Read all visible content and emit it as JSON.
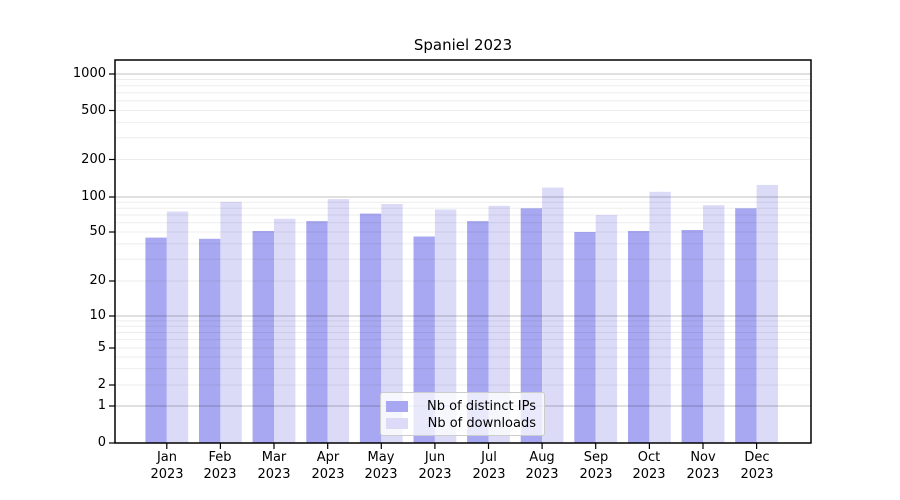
{
  "chart_data": {
    "type": "bar",
    "title": "Spaniel 2023",
    "categories": [
      "Jan",
      "Feb",
      "Mar",
      "Apr",
      "May",
      "Jun",
      "Jul",
      "Aug",
      "Sep",
      "Oct",
      "Nov",
      "Dec"
    ],
    "category_year": "2023",
    "series": [
      {
        "name": "Nb of distinct IPs",
        "color": "#a8a8f2",
        "values": [
          45,
          44,
          51,
          62,
          72,
          46,
          62,
          80,
          50,
          51,
          52,
          80
        ]
      },
      {
        "name": "Nb of downloads",
        "color": "#dbdbf8",
        "values": [
          75,
          91,
          65,
          96,
          87,
          78,
          84,
          119,
          70,
          110,
          85,
          125
        ]
      }
    ],
    "y_axis": {
      "scale": "symlog",
      "ticks": [
        0,
        1,
        2,
        5,
        10,
        20,
        50,
        100,
        200,
        500,
        1000
      ],
      "tick_labels": [
        "0",
        "1",
        "2",
        "5",
        "10",
        "20",
        "50",
        "100",
        "200",
        "500",
        "1000"
      ]
    },
    "x_axis": {
      "tick_label_format": "Month over Year"
    },
    "grid": true,
    "legend_position": "lower center",
    "ylim": [
      0,
      1300
    ]
  },
  "legend": {
    "items": [
      {
        "label": "Nb of distinct IPs",
        "color": "#a8a8f2"
      },
      {
        "label": "Nb of downloads",
        "color": "#dbdbf8"
      }
    ]
  },
  "colors": {
    "frame": "#000000",
    "grid_major": "rgba(0,0,0,0.24)",
    "grid_minor": "rgba(0,0,0,0.07)"
  }
}
